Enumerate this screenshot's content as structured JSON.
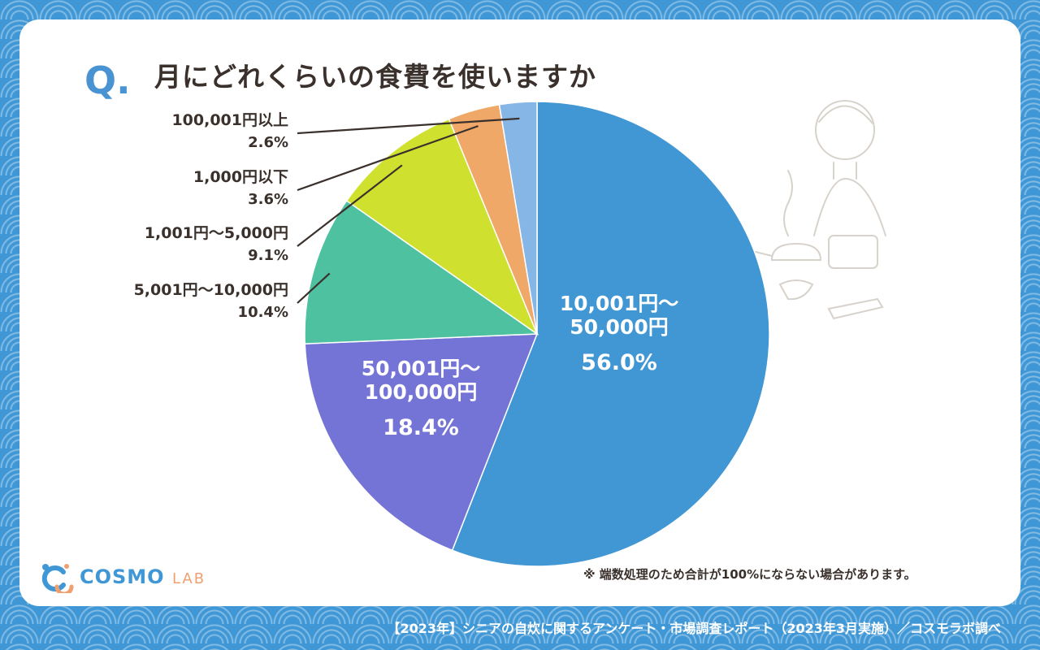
{
  "header": {
    "q_mark": "Q.",
    "question": "月にどれくらいの食費を使いますか"
  },
  "chart_data": {
    "type": "pie",
    "start_angle_deg": 0,
    "direction": "clockwise",
    "slices": [
      {
        "label_lines": [
          "10,001円〜",
          "50,000円"
        ],
        "value": 56.0,
        "pct_text": "56.0%",
        "color": "#4196d4",
        "label_position": "inside"
      },
      {
        "label_lines": [
          "50,001円〜",
          "100,000円"
        ],
        "value": 18.4,
        "pct_text": "18.4%",
        "color": "#7474d6",
        "label_position": "inside"
      },
      {
        "label_lines": [
          "5,001円〜10,000円"
        ],
        "value": 10.4,
        "pct_text": "10.4%",
        "color": "#4ec1a0",
        "label_position": "outside"
      },
      {
        "label_lines": [
          "1,001円〜5,000円"
        ],
        "value": 9.1,
        "pct_text": "9.1%",
        "color": "#cfe02e",
        "label_position": "outside"
      },
      {
        "label_lines": [
          "1,000円以下"
        ],
        "value": 3.6,
        "pct_text": "3.6%",
        "color": "#f0a868",
        "label_position": "outside"
      },
      {
        "label_lines": [
          "100,001円以上"
        ],
        "value": 2.6,
        "pct_text": "2.6%",
        "color": "#86b6e6",
        "label_position": "outside"
      }
    ]
  },
  "note": "※ 端数処理のため合計が100%にならない場合があります。",
  "logo": {
    "text_main": "COSMO",
    "text_sub": "LAB"
  },
  "footer": "【2023年】シニアの自炊に関するアンケート・市場調査レポート（2023年3月実施）／コスモラボ調べ"
}
